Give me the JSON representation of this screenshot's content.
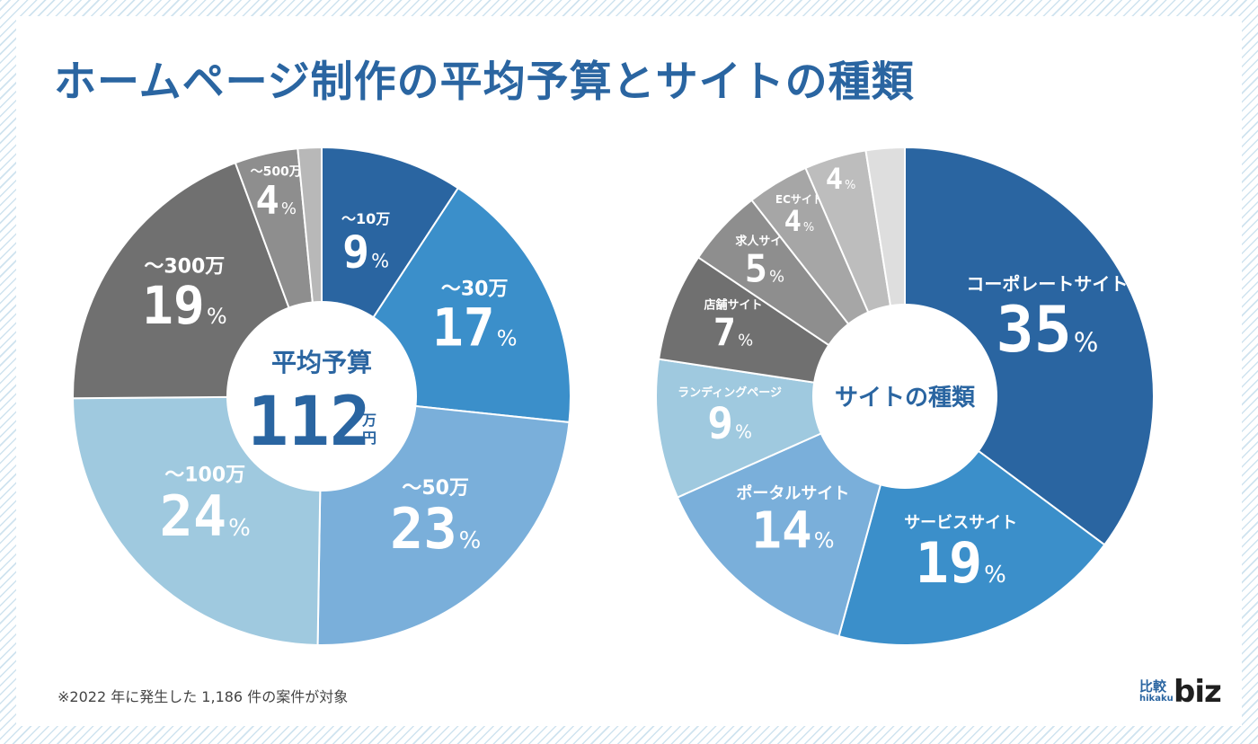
{
  "title": "ホームページ制作の平均予算とサイトの種類",
  "footnote": "※2022 年に発生した 1,186 件の案件が対象",
  "logo": {
    "kanji": "比較",
    "roman": "hikaku",
    "biz": "biz"
  },
  "chart_data": [
    {
      "type": "pie",
      "center_label": "平均予算",
      "center_value": "112",
      "center_unit_top": "万",
      "center_unit_bottom": "円",
      "slices": [
        {
          "label": "～10万",
          "value": 9,
          "color": "#2a65a1"
        },
        {
          "label": "～30万",
          "value": 17,
          "color": "#3b8fca"
        },
        {
          "label": "～50万",
          "value": 23,
          "color": "#7aafda"
        },
        {
          "label": "～100万",
          "value": 24,
          "color": "#9fc9df"
        },
        {
          "label": "～300万",
          "value": 19,
          "color": "#707070"
        },
        {
          "label": "～500万",
          "value": 4,
          "color": "#8e8e8e"
        },
        {
          "label": "",
          "value": 1.5,
          "color": "#b8b8b8"
        }
      ]
    },
    {
      "type": "pie",
      "center_label": "サイトの種類",
      "slices": [
        {
          "label": "コーポレートサイト",
          "value": 35,
          "color": "#2a65a1"
        },
        {
          "label": "サービスサイト",
          "value": 19,
          "color": "#3b8fca"
        },
        {
          "label": "ポータルサイト",
          "value": 14,
          "color": "#7aafda"
        },
        {
          "label": "ランディングページ",
          "value": 9,
          "color": "#9fc9df"
        },
        {
          "label": "店舗サイト",
          "value": 7,
          "color": "#707070"
        },
        {
          "label": "求人サイト",
          "value": 5,
          "color": "#8e8e8e"
        },
        {
          "label": "ECサイト",
          "value": 4,
          "color": "#a6a6a6"
        },
        {
          "label": "",
          "value": 4,
          "color": "#bdbdbd"
        },
        {
          "label": "",
          "value": 2.5,
          "color": "#dedede"
        }
      ]
    }
  ]
}
